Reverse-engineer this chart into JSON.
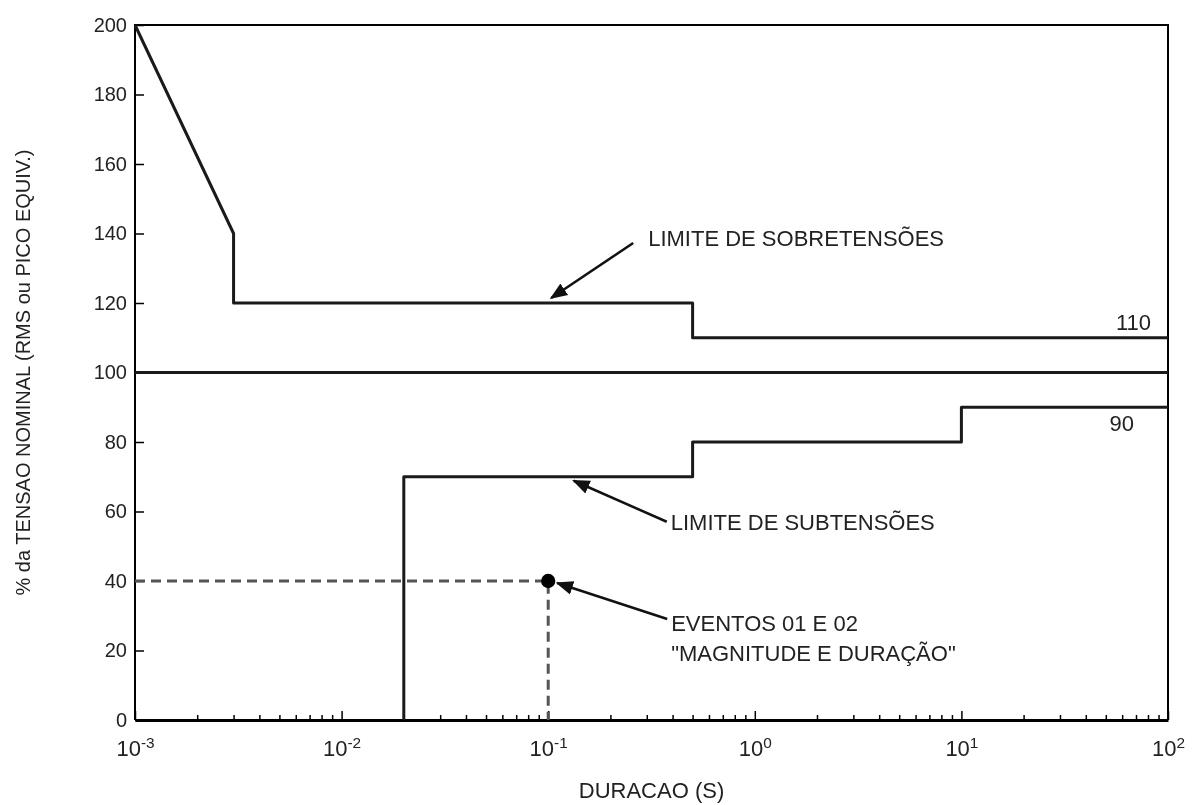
{
  "chart_data": {
    "type": "line",
    "xlabel": "DURACAO (S)",
    "ylabel": "% da TENSAO NOMINAL (RMS ou PICO EQUIV.)",
    "log": "x",
    "grid": false,
    "xlim": [
      0.001,
      100
    ],
    "ylim": [
      0,
      200
    ],
    "xticks": [
      {
        "value": 0.001,
        "label": "10$^{-3}$"
      },
      {
        "value": 0.002,
        "label": null
      },
      {
        "value": 0.003,
        "label": null
      },
      {
        "value": 0.004,
        "label": null
      },
      {
        "value": 0.005,
        "label": null
      },
      {
        "value": 0.006,
        "label": null
      },
      {
        "value": 0.007,
        "label": null
      },
      {
        "value": 0.008,
        "label": null
      },
      {
        "value": 0.009,
        "label": null
      },
      {
        "value": 0.01,
        "label": "10$^{-2}$"
      },
      {
        "value": 0.02,
        "label": null
      },
      {
        "value": 0.03,
        "label": null
      },
      {
        "value": 0.04,
        "label": null
      },
      {
        "value": 0.05,
        "label": null
      },
      {
        "value": 0.06,
        "label": null
      },
      {
        "value": 0.07,
        "label": null
      },
      {
        "value": 0.08,
        "label": null
      },
      {
        "value": 0.09,
        "label": null
      },
      {
        "value": 0.1,
        "label": "10$^{-1}$"
      },
      {
        "value": 0.2,
        "label": null
      },
      {
        "value": 0.3,
        "label": null
      },
      {
        "value": 0.4,
        "label": null
      },
      {
        "value": 0.5,
        "label": null
      },
      {
        "value": 0.6,
        "label": null
      },
      {
        "value": 0.7,
        "label": null
      },
      {
        "value": 0.8,
        "label": null
      },
      {
        "value": 0.9,
        "label": null
      },
      {
        "value": 1,
        "label": "10$^{0}$"
      },
      {
        "value": 2,
        "label": null
      },
      {
        "value": 3,
        "label": null
      },
      {
        "value": 4,
        "label": null
      },
      {
        "value": 5,
        "label": null
      },
      {
        "value": 6,
        "label": null
      },
      {
        "value": 7,
        "label": null
      },
      {
        "value": 8,
        "label": null
      },
      {
        "value": 9,
        "label": null
      },
      {
        "value": 10,
        "label": "10$^{1}$"
      },
      {
        "value": 20,
        "label": null
      },
      {
        "value": 30,
        "label": null
      },
      {
        "value": 40,
        "label": null
      },
      {
        "value": 50,
        "label": null
      },
      {
        "value": 60,
        "label": null
      },
      {
        "value": 70,
        "label": null
      },
      {
        "value": 80,
        "label": null
      },
      {
        "value": 90,
        "label": null
      },
      {
        "value": 100,
        "label": "10$^{2}$"
      }
    ],
    "yticks": [
      0,
      20,
      40,
      60,
      80,
      100,
      120,
      140,
      160,
      180,
      200
    ],
    "series": [
      {
        "color": "#1a1a1a",
        "x": [
          0.001,
          0.003,
          0.003,
          0.5,
          0.5,
          100
        ],
        "values": [
          200,
          140,
          120,
          120,
          110,
          110
        ]
      },
      {
        "color": "#1a1a1a",
        "x": [
          0.001,
          100
        ],
        "values": [
          100,
          100
        ]
      },
      {
        "color": "#1a1a1a",
        "x": [
          0.02,
          0.02,
          0.5,
          0.5,
          10,
          10,
          100
        ],
        "values": [
          0,
          70,
          70,
          80,
          80,
          90,
          90
        ]
      },
      {
        "color": "#555555",
        "line_style": "dashed",
        "x": [
          0.001,
          0.1,
          0.1
        ],
        "values": [
          40,
          40,
          0
        ]
      },
      {
        "type": "scatter",
        "color": "#000000",
        "marker": "circle",
        "x": [
          0.1
        ],
        "values": [
          40
        ]
      }
    ],
    "annotations": [
      {
        "text": "LIMITE DE SOBRETENSÕES",
        "x": 0.1,
        "y": 120
      },
      {
        "text": "LIMITE DE SUBTENSÕES",
        "x": 0.13,
        "y": 70
      },
      {
        "text": "EVENTOS 01 E 02\n\"MAGNITUDE E DURAÇÃO\"",
        "x": 0.1,
        "y": 40
      },
      {
        "text": "110",
        "x": 100,
        "y": 110
      },
      {
        "text": "90",
        "x": 100,
        "y": 90
      }
    ]
  }
}
